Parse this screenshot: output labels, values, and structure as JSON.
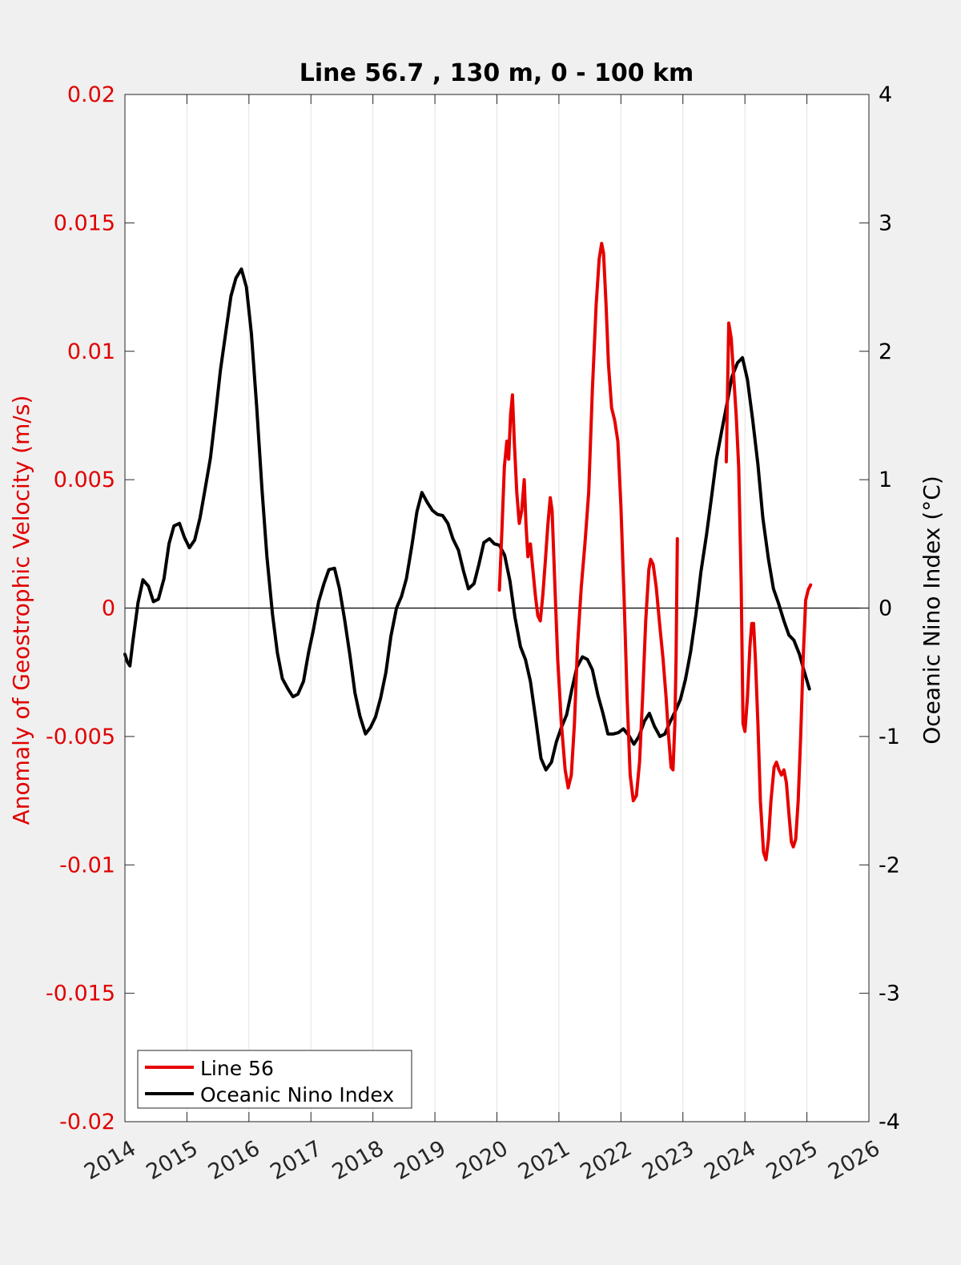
{
  "chart_data": {
    "type": "line",
    "title": "Line 56.7 , 130 m, 0 - 100 km",
    "xlabel": "",
    "ylabel_left": "Anomaly of Geostrophic Velocity (m/s)",
    "ylabel_right": "Oceanic Nino Index (°C)",
    "xlim": [
      2014,
      2026
    ],
    "ylim_left": [
      -0.02,
      0.02
    ],
    "ylim_right": [
      -4,
      4
    ],
    "x_ticks": [
      "2014",
      "2015",
      "2016",
      "2017",
      "2018",
      "2019",
      "2020",
      "2021",
      "2022",
      "2023",
      "2024",
      "2025",
      "2026"
    ],
    "y_ticks_left": [
      "-0.02",
      "-0.015",
      "-0.01",
      "-0.005",
      "0",
      "0.005",
      "0.01",
      "0.015",
      "0.02"
    ],
    "y_ticks_right": [
      "-4",
      "-3",
      "-2",
      "-1",
      "0",
      "1",
      "2",
      "3",
      "4"
    ],
    "grid": "vertical",
    "legend_position": "bottom-left",
    "left_axis_color": "#e00000",
    "series": [
      {
        "name": "Line 56",
        "axis": "left",
        "color": "#e60000",
        "segments": [
          [
            [
              2020.04,
              0.0007
            ],
            [
              2020.08,
              0.003
            ],
            [
              2020.12,
              0.0055
            ],
            [
              2020.16,
              0.0065
            ],
            [
              2020.19,
              0.0058
            ],
            [
              2020.22,
              0.0075
            ],
            [
              2020.25,
              0.0083
            ],
            [
              2020.28,
              0.0065
            ],
            [
              2020.32,
              0.0045
            ],
            [
              2020.36,
              0.0033
            ],
            [
              2020.4,
              0.0038
            ],
            [
              2020.44,
              0.005
            ],
            [
              2020.47,
              0.0032
            ],
            [
              2020.5,
              0.002
            ],
            [
              2020.54,
              0.0025
            ],
            [
              2020.58,
              0.0015
            ],
            [
              2020.62,
              0.0005
            ],
            [
              2020.66,
              -0.0003
            ],
            [
              2020.7,
              -0.0005
            ],
            [
              2020.74,
              0.0005
            ],
            [
              2020.78,
              0.0018
            ],
            [
              2020.82,
              0.0032
            ],
            [
              2020.86,
              0.0043
            ],
            [
              2020.89,
              0.0038
            ],
            [
              2020.93,
              0.0012
            ],
            [
              2020.98,
              -0.002
            ],
            [
              2021.04,
              -0.0045
            ],
            [
              2021.1,
              -0.0063
            ],
            [
              2021.15,
              -0.007
            ],
            [
              2021.2,
              -0.0065
            ],
            [
              2021.25,
              -0.0045
            ],
            [
              2021.3,
              -0.0015
            ],
            [
              2021.36,
              0.0008
            ],
            [
              2021.42,
              0.0025
            ],
            [
              2021.48,
              0.0045
            ],
            [
              2021.54,
              0.0085
            ],
            [
              2021.6,
              0.0118
            ],
            [
              2021.65,
              0.0136
            ],
            [
              2021.69,
              0.0142
            ],
            [
              2021.72,
              0.0138
            ],
            [
              2021.76,
              0.0118
            ],
            [
              2021.8,
              0.0095
            ],
            [
              2021.85,
              0.0078
            ],
            [
              2021.9,
              0.0073
            ],
            [
              2021.95,
              0.0065
            ],
            [
              2022.0,
              0.004
            ],
            [
              2022.05,
              0.0005
            ],
            [
              2022.1,
              -0.0035
            ],
            [
              2022.15,
              -0.0065
            ],
            [
              2022.2,
              -0.0075
            ],
            [
              2022.25,
              -0.0073
            ],
            [
              2022.3,
              -0.006
            ],
            [
              2022.35,
              -0.0035
            ],
            [
              2022.4,
              -0.0005
            ],
            [
              2022.45,
              0.0015
            ],
            [
              2022.48,
              0.0019
            ],
            [
              2022.52,
              0.0017
            ],
            [
              2022.57,
              0.0008
            ],
            [
              2022.62,
              -0.0005
            ],
            [
              2022.68,
              -0.002
            ],
            [
              2022.73,
              -0.0035
            ],
            [
              2022.77,
              -0.005
            ],
            [
              2022.81,
              -0.0062
            ],
            [
              2022.84,
              -0.0063
            ],
            [
              2022.87,
              -0.0045
            ],
            [
              2022.89,
              -0.002
            ],
            [
              2022.91,
              0.0027
            ]
          ],
          [
            [
              2023.7,
              0.0057
            ],
            [
              2023.72,
              0.0085
            ],
            [
              2023.74,
              0.0111
            ],
            [
              2023.78,
              0.0105
            ],
            [
              2023.82,
              0.009
            ],
            [
              2023.86,
              0.0075
            ],
            [
              2023.9,
              0.0055
            ],
            [
              2023.94,
              0.001
            ],
            [
              2023.97,
              -0.0045
            ],
            [
              2024.0,
              -0.0048
            ],
            [
              2024.04,
              -0.0035
            ],
            [
              2024.08,
              -0.0015
            ],
            [
              2024.11,
              -0.0006
            ],
            [
              2024.14,
              -0.0006
            ],
            [
              2024.17,
              -0.002
            ],
            [
              2024.21,
              -0.0045
            ],
            [
              2024.25,
              -0.0075
            ],
            [
              2024.3,
              -0.0095
            ],
            [
              2024.34,
              -0.0098
            ],
            [
              2024.38,
              -0.009
            ],
            [
              2024.42,
              -0.0075
            ],
            [
              2024.47,
              -0.0062
            ],
            [
              2024.51,
              -0.006
            ],
            [
              2024.55,
              -0.0063
            ],
            [
              2024.59,
              -0.0065
            ],
            [
              2024.63,
              -0.0063
            ],
            [
              2024.67,
              -0.0068
            ],
            [
              2024.71,
              -0.008
            ],
            [
              2024.75,
              -0.0091
            ],
            [
              2024.78,
              -0.0093
            ],
            [
              2024.82,
              -0.009
            ],
            [
              2024.86,
              -0.0075
            ],
            [
              2024.9,
              -0.005
            ],
            [
              2024.94,
              -0.002
            ],
            [
              2024.98,
              0.0003
            ],
            [
              2025.02,
              0.0007
            ],
            [
              2025.06,
              0.0009
            ]
          ]
        ]
      },
      {
        "name": "Oceanic Nino Index",
        "axis": "right",
        "color": "#000000",
        "segments": [
          [
            [
              2014.0,
              -0.36
            ],
            [
              2014.04,
              -0.42
            ],
            [
              2014.08,
              -0.45
            ],
            [
              2014.125,
              -0.27
            ],
            [
              2014.21,
              0.04
            ],
            [
              2014.29,
              0.22
            ],
            [
              2014.38,
              0.17
            ],
            [
              2014.46,
              0.05
            ],
            [
              2014.54,
              0.07
            ],
            [
              2014.63,
              0.23
            ],
            [
              2014.71,
              0.5
            ],
            [
              2014.79,
              0.64
            ],
            [
              2014.88,
              0.66
            ],
            [
              2014.96,
              0.55
            ],
            [
              2015.04,
              0.47
            ],
            [
              2015.125,
              0.53
            ],
            [
              2015.21,
              0.7
            ],
            [
              2015.29,
              0.92
            ],
            [
              2015.38,
              1.17
            ],
            [
              2015.46,
              1.5
            ],
            [
              2015.54,
              1.85
            ],
            [
              2015.63,
              2.16
            ],
            [
              2015.71,
              2.43
            ],
            [
              2015.79,
              2.57
            ],
            [
              2015.88,
              2.64
            ],
            [
              2015.96,
              2.5
            ],
            [
              2016.04,
              2.14
            ],
            [
              2016.125,
              1.57
            ],
            [
              2016.21,
              0.93
            ],
            [
              2016.29,
              0.4
            ],
            [
              2016.38,
              -0.05
            ],
            [
              2016.46,
              -0.35
            ],
            [
              2016.54,
              -0.55
            ],
            [
              2016.63,
              -0.63
            ],
            [
              2016.71,
              -0.69
            ],
            [
              2016.79,
              -0.67
            ],
            [
              2016.88,
              -0.57
            ],
            [
              2016.96,
              -0.35
            ],
            [
              2017.04,
              -0.17
            ],
            [
              2017.125,
              0.05
            ],
            [
              2017.21,
              0.19
            ],
            [
              2017.29,
              0.3
            ],
            [
              2017.38,
              0.31
            ],
            [
              2017.46,
              0.15
            ],
            [
              2017.54,
              -0.08
            ],
            [
              2017.63,
              -0.37
            ],
            [
              2017.71,
              -0.66
            ],
            [
              2017.79,
              -0.84
            ],
            [
              2017.88,
              -0.98
            ],
            [
              2017.96,
              -0.93
            ],
            [
              2018.04,
              -0.85
            ],
            [
              2018.125,
              -0.7
            ],
            [
              2018.21,
              -0.5
            ],
            [
              2018.29,
              -0.22
            ],
            [
              2018.38,
              0.0
            ],
            [
              2018.46,
              0.09
            ],
            [
              2018.54,
              0.23
            ],
            [
              2018.63,
              0.49
            ],
            [
              2018.71,
              0.75
            ],
            [
              2018.79,
              0.9
            ],
            [
              2018.88,
              0.82
            ],
            [
              2018.96,
              0.76
            ],
            [
              2019.04,
              0.73
            ],
            [
              2019.125,
              0.72
            ],
            [
              2019.21,
              0.66
            ],
            [
              2019.29,
              0.54
            ],
            [
              2019.38,
              0.45
            ],
            [
              2019.46,
              0.29
            ],
            [
              2019.54,
              0.15
            ],
            [
              2019.63,
              0.19
            ],
            [
              2019.71,
              0.34
            ],
            [
              2019.79,
              0.51
            ],
            [
              2019.88,
              0.54
            ],
            [
              2019.96,
              0.5
            ],
            [
              2020.04,
              0.49
            ],
            [
              2020.125,
              0.41
            ],
            [
              2020.21,
              0.21
            ],
            [
              2020.29,
              -0.07
            ],
            [
              2020.38,
              -0.3
            ],
            [
              2020.46,
              -0.4
            ],
            [
              2020.54,
              -0.57
            ],
            [
              2020.63,
              -0.88
            ],
            [
              2020.71,
              -1.17
            ],
            [
              2020.79,
              -1.26
            ],
            [
              2020.88,
              -1.2
            ],
            [
              2020.96,
              -1.04
            ],
            [
              2021.04,
              -0.93
            ],
            [
              2021.125,
              -0.83
            ],
            [
              2021.21,
              -0.63
            ],
            [
              2021.29,
              -0.46
            ],
            [
              2021.38,
              -0.38
            ],
            [
              2021.46,
              -0.4
            ],
            [
              2021.54,
              -0.48
            ],
            [
              2021.63,
              -0.68
            ],
            [
              2021.71,
              -0.82
            ],
            [
              2021.79,
              -0.98
            ],
            [
              2021.88,
              -0.98
            ],
            [
              2021.96,
              -0.97
            ],
            [
              2022.04,
              -0.94
            ],
            [
              2022.125,
              -0.99
            ],
            [
              2022.21,
              -1.06
            ],
            [
              2022.29,
              -1.0
            ],
            [
              2022.38,
              -0.88
            ],
            [
              2022.46,
              -0.82
            ],
            [
              2022.54,
              -0.92
            ],
            [
              2022.63,
              -1.0
            ],
            [
              2022.71,
              -0.98
            ],
            [
              2022.79,
              -0.89
            ],
            [
              2022.88,
              -0.8
            ],
            [
              2022.96,
              -0.71
            ],
            [
              2023.04,
              -0.56
            ],
            [
              2023.125,
              -0.34
            ],
            [
              2023.21,
              -0.05
            ],
            [
              2023.29,
              0.28
            ],
            [
              2023.38,
              0.57
            ],
            [
              2023.46,
              0.86
            ],
            [
              2023.54,
              1.16
            ],
            [
              2023.63,
              1.39
            ],
            [
              2023.71,
              1.59
            ],
            [
              2023.79,
              1.8
            ],
            [
              2023.88,
              1.91
            ],
            [
              2023.96,
              1.95
            ],
            [
              2024.04,
              1.78
            ],
            [
              2024.125,
              1.47
            ],
            [
              2024.21,
              1.12
            ],
            [
              2024.29,
              0.7
            ],
            [
              2024.38,
              0.38
            ],
            [
              2024.46,
              0.15
            ],
            [
              2024.54,
              0.04
            ],
            [
              2024.63,
              -0.1
            ],
            [
              2024.71,
              -0.21
            ],
            [
              2024.79,
              -0.25
            ],
            [
              2024.88,
              -0.36
            ],
            [
              2024.96,
              -0.5
            ],
            [
              2025.04,
              -0.63
            ]
          ]
        ]
      }
    ]
  }
}
